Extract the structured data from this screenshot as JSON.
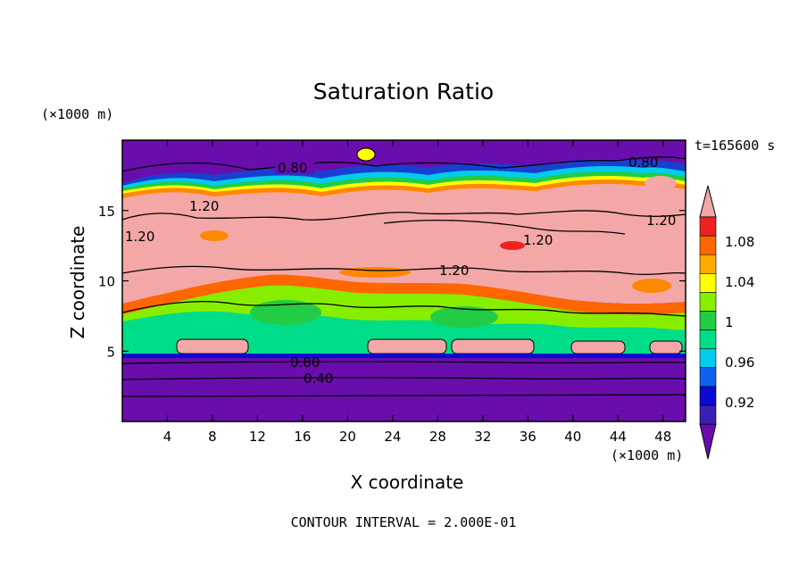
{
  "chart_data": {
    "type": "heatmap",
    "title": "Saturation Ratio",
    "xlabel": "X coordinate",
    "ylabel": "Z coordinate",
    "x_unit": "(×1000 m)",
    "y_unit": "(×1000 m)",
    "time_label": "t=165600 s",
    "footer": "CONTOUR INTERVAL = 2.000E-01",
    "xlim": [
      0,
      50
    ],
    "ylim": [
      0,
      20
    ],
    "x_ticks": [
      4,
      8,
      12,
      16,
      20,
      24,
      28,
      32,
      36,
      40,
      44,
      48
    ],
    "x_tick_labels": [
      "4",
      "8",
      "12",
      "16",
      "20",
      "24",
      "28",
      "32",
      "36",
      "40",
      "44",
      "48"
    ],
    "y_ticks": [
      5,
      10,
      15
    ],
    "y_tick_labels": [
      "5",
      "10",
      "15"
    ],
    "colorbar": {
      "labels": [
        "1.08",
        "1.04",
        "1",
        "0.96",
        "0.92"
      ],
      "level_colors": [
        "#6a0dad",
        "#3a1fb4",
        "#0a0ad0",
        "#1060f0",
        "#00ccee",
        "#00dd88",
        "#22cc44",
        "#88ee00",
        "#ffff00",
        "#ffaa00",
        "#ff6600",
        "#ee2222",
        "#f4a7a7"
      ]
    },
    "contour_labels": [
      "0.80",
      "0.80",
      "1.20",
      "1.20",
      "1.20",
      "1.20",
      "1.20",
      "0.80",
      "0.40"
    ]
  }
}
